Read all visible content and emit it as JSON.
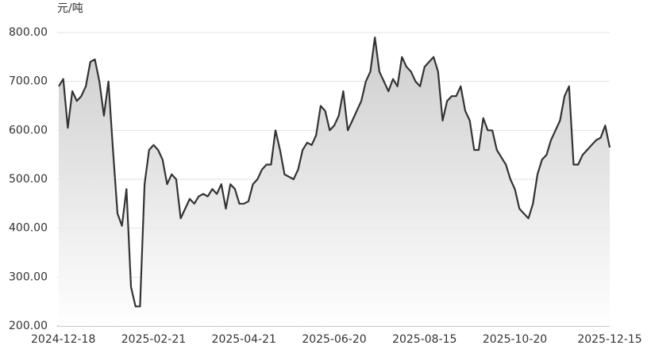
{
  "chart_data": {
    "type": "area",
    "y_label": "元/吨",
    "categories": [
      null,
      "2024-12-18",
      null,
      null,
      null,
      null,
      null,
      null,
      null,
      null,
      null,
      null,
      null,
      null,
      null,
      null,
      null,
      null,
      null,
      null,
      null,
      "2025-02-21",
      null,
      null,
      null,
      null,
      null,
      null,
      null,
      null,
      null,
      null,
      null,
      null,
      null,
      null,
      null,
      null,
      null,
      null,
      null,
      "2025-04-21",
      null,
      null,
      null,
      null,
      null,
      null,
      null,
      null,
      null,
      null,
      null,
      null,
      null,
      null,
      null,
      null,
      null,
      null,
      null,
      "2025-06-20",
      null,
      null,
      null,
      null,
      null,
      null,
      null,
      null,
      null,
      null,
      null,
      null,
      null,
      null,
      null,
      null,
      null,
      null,
      null,
      "2025-08-15",
      null,
      null,
      null,
      null,
      null,
      null,
      null,
      null,
      null,
      null,
      null,
      null,
      null,
      null,
      null,
      null,
      null,
      null,
      null,
      "2025-10-20",
      null,
      null,
      null,
      null,
      null,
      null,
      null,
      null,
      null,
      null,
      null,
      null,
      null,
      null,
      null,
      null,
      null,
      null,
      null,
      null,
      "2025-12-15"
    ],
    "values": [
      690,
      705,
      605,
      680,
      660,
      670,
      690,
      740,
      745,
      700,
      630,
      700,
      560,
      430,
      405,
      480,
      280,
      240,
      240,
      490,
      560,
      570,
      560,
      540,
      490,
      510,
      500,
      420,
      440,
      460,
      450,
      465,
      470,
      465,
      480,
      470,
      490,
      440,
      490,
      480,
      450,
      450,
      455,
      490,
      500,
      520,
      530,
      530,
      600,
      560,
      510,
      505,
      500,
      520,
      560,
      575,
      570,
      590,
      650,
      640,
      600,
      610,
      630,
      680,
      600,
      620,
      640,
      660,
      700,
      720,
      790,
      720,
      700,
      680,
      705,
      690,
      750,
      730,
      720,
      700,
      690,
      730,
      740,
      750,
      720,
      620,
      660,
      670,
      670,
      690,
      640,
      620,
      560,
      560,
      625,
      600,
      600,
      560,
      545,
      530,
      500,
      480,
      440,
      430,
      420,
      450,
      510,
      540,
      550,
      580,
      600,
      620,
      670,
      690,
      530,
      530,
      550,
      560,
      570,
      580,
      585,
      610,
      565
    ],
    "color": "#333333",
    "ylim": [
      200,
      800
    ],
    "yticks": [
      {
        "value": 200,
        "label": "200.00"
      },
      {
        "value": 300,
        "label": "300.00"
      },
      {
        "value": 400,
        "label": "400.00"
      },
      {
        "value": 500,
        "label": "500.00"
      },
      {
        "value": 600,
        "label": "600.00"
      },
      {
        "value": 700,
        "label": "700.00"
      },
      {
        "value": 800,
        "label": "800.00"
      }
    ],
    "grid": true
  }
}
